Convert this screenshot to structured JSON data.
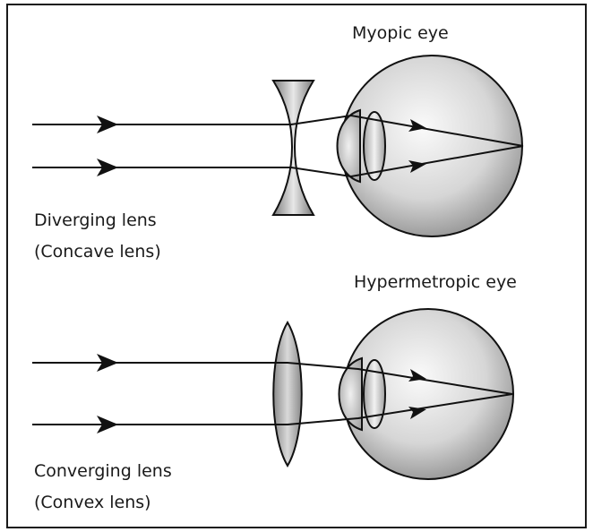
{
  "top_panel": {
    "title": "Myopic eye",
    "lens_label_line1": "Diverging lens",
    "lens_label_line2": "(Concave lens)"
  },
  "bottom_panel": {
    "title": "Hypermetropic eye",
    "lens_label_line1": "Converging lens",
    "lens_label_line2": "(Convex lens)"
  },
  "colors": {
    "frame": "#1a1a1a",
    "ray": "#111111",
    "lens_fill": "#9a9a9a",
    "eye_shade": "#8f8f8f"
  }
}
